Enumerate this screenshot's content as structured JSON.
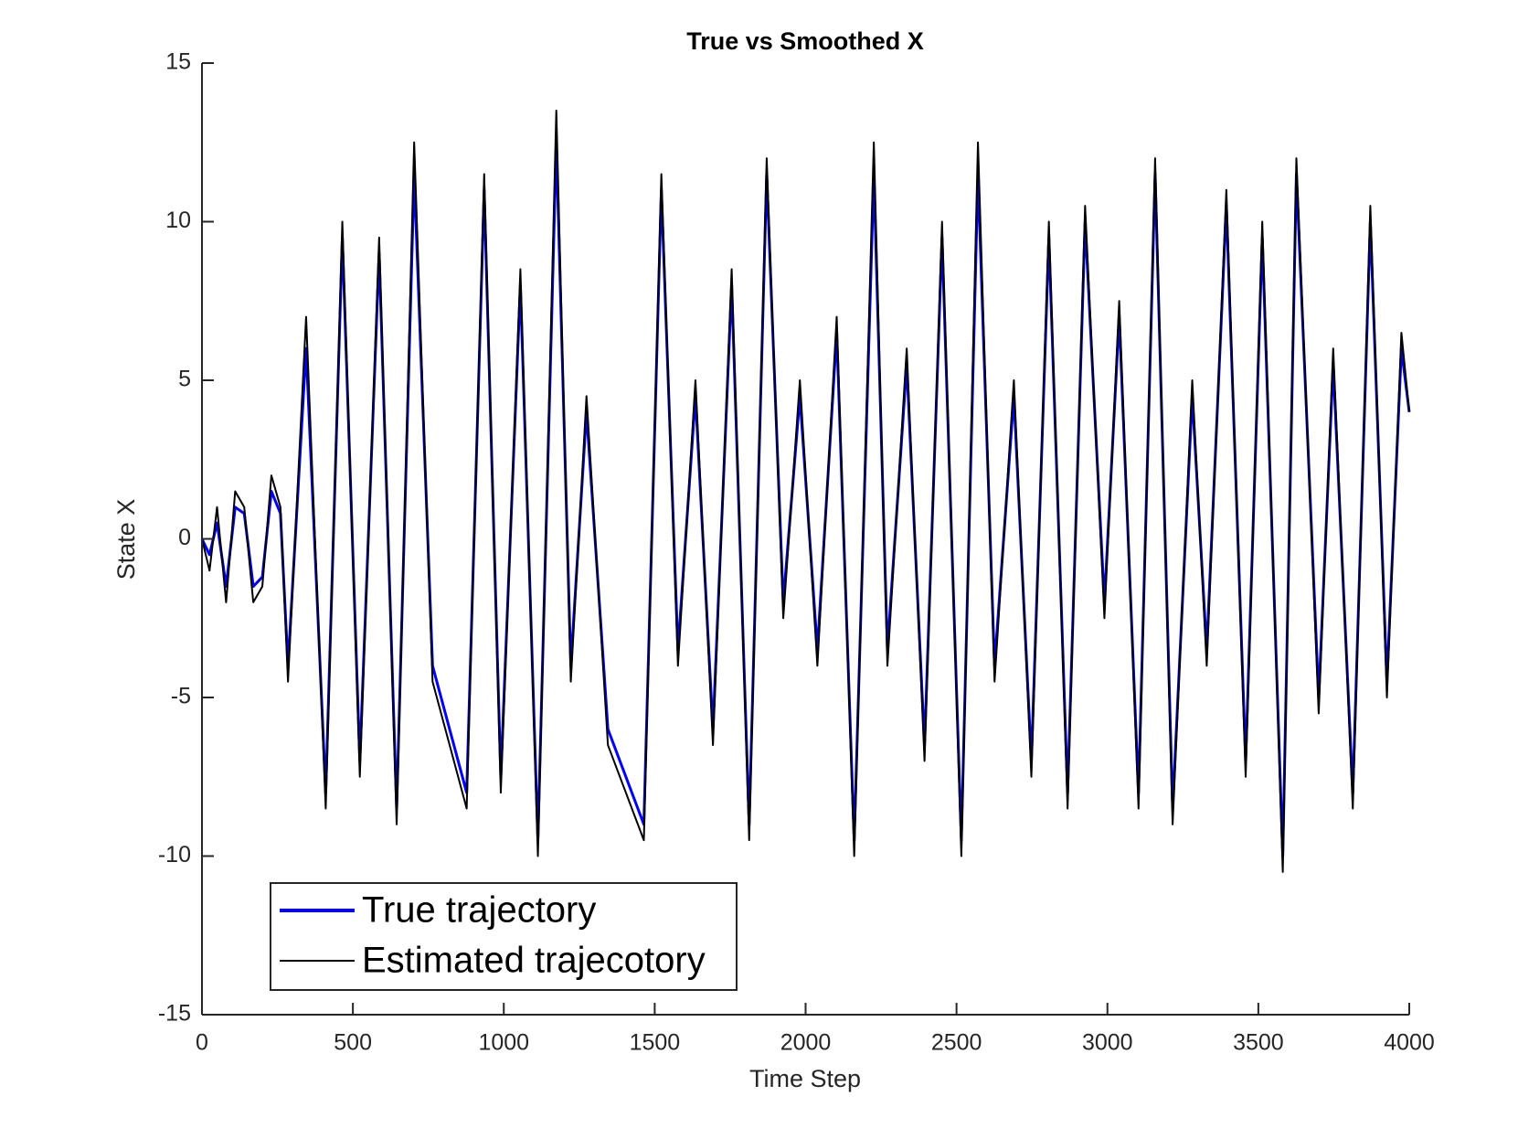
{
  "chart_data": {
    "type": "line",
    "title": "True vs Smoothed X",
    "xlabel": "Time Step",
    "ylabel": "State X",
    "xlim": [
      0,
      4000
    ],
    "ylim": [
      -15,
      15
    ],
    "xticks": [
      0,
      500,
      1000,
      1500,
      2000,
      2500,
      3000,
      3500,
      4000
    ],
    "yticks": [
      -15,
      -10,
      -5,
      0,
      5,
      10,
      15
    ],
    "grid": false,
    "legend": "lower left",
    "x": [
      0,
      25,
      50,
      80,
      110,
      140,
      170,
      200,
      230,
      260,
      285,
      345,
      410,
      465,
      523,
      587,
      645,
      703,
      764,
      877,
      935,
      990,
      1055,
      1113,
      1174,
      1222,
      1274,
      1345,
      1464,
      1522,
      1577,
      1635,
      1693,
      1755,
      1813,
      1871,
      1926,
      1981,
      2039,
      2103,
      2161,
      2226,
      2271,
      2335,
      2394,
      2452,
      2516,
      2571,
      2626,
      2690,
      2748,
      2806,
      2868,
      2926,
      2990,
      3039,
      3103,
      3158,
      3216,
      3281,
      3329,
      3394,
      3458,
      3513,
      3581,
      3626,
      3700,
      3748,
      3813,
      3871,
      3926,
      3974,
      4000
    ],
    "series": [
      {
        "name": "True trajectory",
        "color": "#0000ff",
        "values": [
          0,
          -0.5,
          0.5,
          -1.5,
          1,
          0.8,
          -1.5,
          -1.2,
          1.5,
          0.8,
          -4,
          6,
          -8,
          9.5,
          -7,
          9,
          -8.5,
          11.5,
          -4,
          -8,
          11,
          -7.5,
          8,
          -9.5,
          12.5,
          -4,
          4,
          -6,
          -9,
          11,
          -3.5,
          4.5,
          -6,
          8,
          -9,
          11.5,
          -2,
          4.5,
          -3.5,
          6.5,
          -9.5,
          11.5,
          -3.5,
          5.5,
          -6.5,
          9.5,
          -9.5,
          11.5,
          -4,
          4.5,
          -7,
          9.5,
          -8,
          10,
          -2,
          7,
          -8,
          11.5,
          -8.5,
          4.5,
          -3.5,
          10.5,
          -7,
          9.5,
          -10,
          11.5,
          -5,
          5.5,
          -8,
          10,
          -4.5,
          6,
          4
        ]
      },
      {
        "name": "Estimated trajecotory",
        "color": "#000000",
        "values": [
          0,
          -1,
          1,
          -2,
          1.5,
          1,
          -2,
          -1.5,
          2,
          1,
          -4.5,
          7,
          -8.5,
          10,
          -7.5,
          9.5,
          -9,
          12.5,
          -4.5,
          -8.5,
          11.5,
          -8,
          8.5,
          -10,
          13.5,
          -4.5,
          4.5,
          -6.5,
          -9.5,
          11.5,
          -4,
          5,
          -6.5,
          8.5,
          -9.5,
          12,
          -2.5,
          5,
          -4,
          7,
          -10,
          12.5,
          -4,
          6,
          -7,
          10,
          -10,
          12.5,
          -4.5,
          5,
          -7.5,
          10,
          -8.5,
          10.5,
          -2.5,
          7.5,
          -8.5,
          12,
          -9,
          5,
          -4,
          11,
          -7.5,
          10,
          -10.5,
          12,
          -5.5,
          6,
          -8.5,
          10.5,
          -5,
          6.5,
          4
        ]
      }
    ]
  }
}
